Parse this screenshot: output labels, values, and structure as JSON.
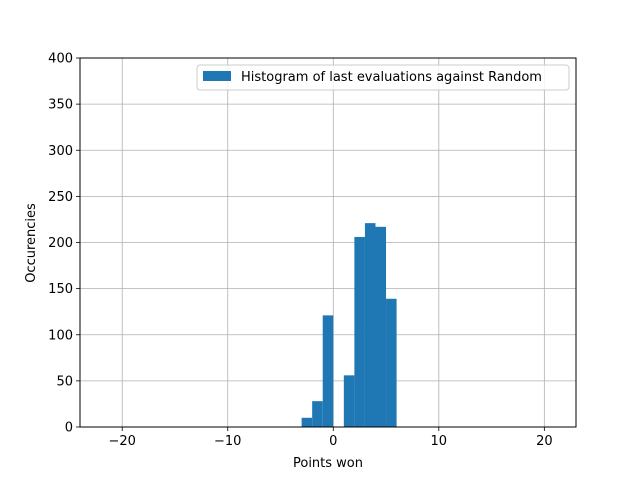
{
  "chart_data": {
    "type": "bar",
    "xlabel": "Points won",
    "ylabel": "Occurencies",
    "xlim": [
      -24,
      23
    ],
    "ylim": [
      0,
      400
    ],
    "xticks": [
      -20,
      -10,
      0,
      10,
      20
    ],
    "yticks": [
      0,
      50,
      100,
      150,
      200,
      250,
      300,
      350,
      400
    ],
    "grid": true,
    "legend_position": "top-right",
    "bar_color": "#1f77b4",
    "series": [
      {
        "name": "Histogram of last evaluations against Random",
        "bins": [
          {
            "x0": -3,
            "x1": -2,
            "value": 10
          },
          {
            "x0": -2,
            "x1": -1,
            "value": 28
          },
          {
            "x0": -1,
            "x1": 0,
            "value": 121
          },
          {
            "x0": 0,
            "x1": 1,
            "value": 0
          },
          {
            "x0": 1,
            "x1": 2,
            "value": 56
          },
          {
            "x0": 2,
            "x1": 3,
            "value": 206
          },
          {
            "x0": 3,
            "x1": 4,
            "value": 221
          },
          {
            "x0": 4,
            "x1": 5,
            "value": 217
          },
          {
            "x0": 5,
            "x1": 6,
            "value": 139
          }
        ]
      }
    ]
  }
}
